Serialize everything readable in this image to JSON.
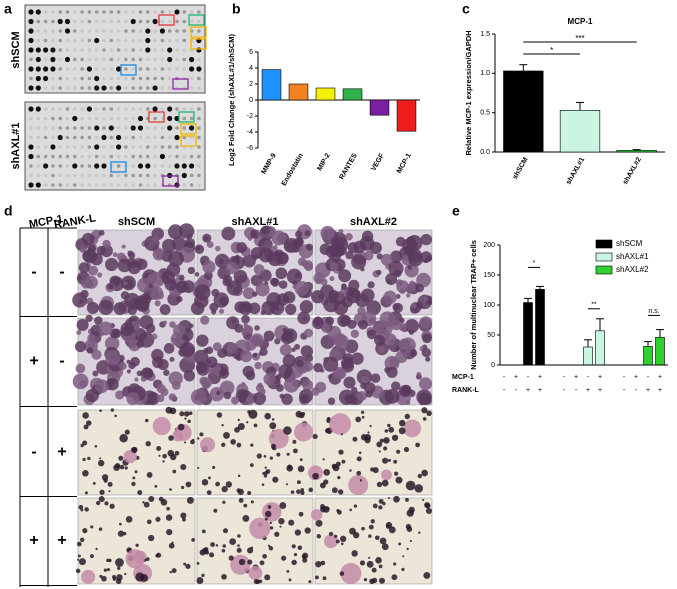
{
  "panels": {
    "a": {
      "label": "a",
      "rows": [
        "shSCM",
        "shAXL#1"
      ]
    },
    "b": {
      "label": "b"
    },
    "c": {
      "label": "c"
    },
    "d": {
      "label": "d",
      "row_headers": [
        "MCP-1",
        "RANK-L"
      ],
      "columns": [
        "shSCM",
        "shAXL#1",
        "shAXL#2"
      ],
      "rows": [
        {
          "mcp1": "-",
          "rankl": "-"
        },
        {
          "mcp1": "+",
          "rankl": "-"
        },
        {
          "mcp1": "-",
          "rankl": "+"
        },
        {
          "mcp1": "+",
          "rankl": "+"
        }
      ]
    },
    "e": {
      "label": "e"
    }
  },
  "chart_data": [
    {
      "type": "bar",
      "y_label": "Log2 Fold Change (shAXL#1/shSCM)",
      "categories": [
        "MMP-9",
        "Endostatin",
        "MIP-2",
        "RANTES",
        "VEGF",
        "MCP-1"
      ],
      "values": [
        3.8,
        2.0,
        1.5,
        1.4,
        -1.9,
        -3.9
      ],
      "colors": [
        "#1e90ff",
        "#f58220",
        "#f5f000",
        "#2db34a",
        "#7b1fa2",
        "#ee1c1c"
      ],
      "ylim": [
        -6,
        6
      ],
      "yticks": [
        -6,
        -4,
        -2,
        0,
        2,
        4,
        6
      ]
    },
    {
      "type": "bar",
      "title": "MCP-1",
      "y_label": "Relative MCP-1 expression/GAPDH",
      "categories": [
        "shSCM",
        "shAXL#1",
        "shAXL#2"
      ],
      "values": [
        1.03,
        0.53,
        0.02
      ],
      "errors": [
        0.08,
        0.1,
        0.01
      ],
      "colors": [
        "#000000",
        "#c9f5e1",
        "#2fd12f"
      ],
      "ylim": [
        0,
        1.5
      ],
      "yticks": [
        {
          "value": 0,
          "label": "0.0"
        },
        {
          "value": 0.5,
          "label": "0.5"
        },
        {
          "value": 1,
          "label": "1.0"
        },
        {
          "value": 1.5,
          "label": "1.5"
        }
      ],
      "annotations": [
        "*",
        "***"
      ]
    },
    {
      "type": "grouped_bar",
      "y_label": "Number of multinuclear TRAP+ cells",
      "row_labels": [
        "MCP-1",
        "RANK-L"
      ],
      "mcp1_signs": [
        "-",
        "+",
        "-",
        "+"
      ],
      "rankl_signs": [
        "-",
        "-",
        "+",
        "+"
      ],
      "series": [
        {
          "name": "shSCM",
          "color": "#000000",
          "values": [
            null,
            null,
            104,
            126
          ],
          "errors": [
            null,
            null,
            7,
            5
          ]
        },
        {
          "name": "shAXL#1",
          "color": "#c9f5e1",
          "values": [
            null,
            null,
            30,
            57
          ],
          "errors": [
            null,
            null,
            12,
            20
          ]
        },
        {
          "name": "shAXL#2",
          "color": "#2fd12f",
          "values": [
            null,
            null,
            31,
            46
          ],
          "errors": [
            null,
            null,
            8,
            13
          ]
        }
      ],
      "ylim": [
        0,
        200
      ],
      "yticks": [
        0,
        50,
        100,
        150,
        200
      ],
      "annotations": [
        "*",
        "**",
        "n.s."
      ]
    }
  ]
}
